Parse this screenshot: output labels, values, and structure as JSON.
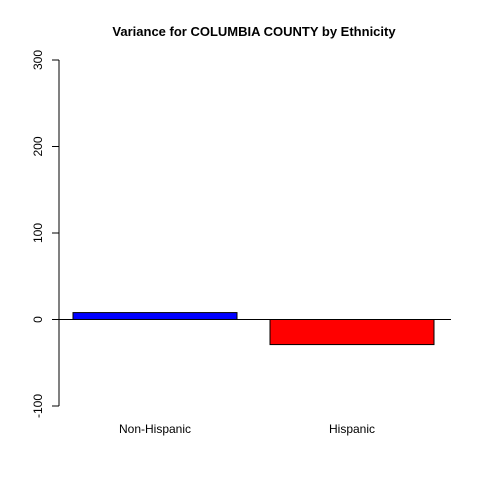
{
  "chart_data": {
    "type": "bar",
    "title": "Variance for COLUMBIA COUNTY by Ethnicity",
    "xlabel": "",
    "ylabel": "",
    "categories": [
      "Non-Hispanic",
      "Hispanic"
    ],
    "values": [
      8,
      -29
    ],
    "colors": [
      "#0000ff",
      "#ff0000"
    ],
    "ylim": [
      -100,
      300
    ],
    "yticks": [
      -100,
      0,
      100,
      200,
      300
    ],
    "ytick_labels": [
      "-100",
      "0",
      "100",
      "200",
      "300"
    ],
    "baseline": 0,
    "grid": false,
    "legend": "none"
  }
}
